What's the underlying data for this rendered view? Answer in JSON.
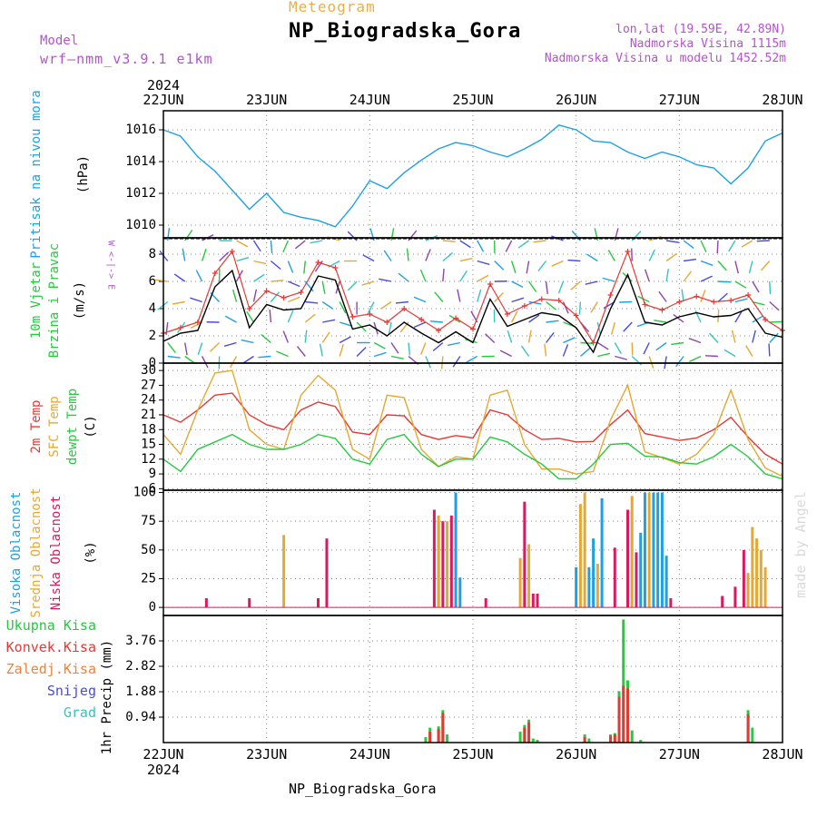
{
  "header": {
    "small_title": "Meteogram",
    "station": "NP_Biogradska_Gora",
    "model_label": "Model",
    "model_name": "wrf—nmm_v3.9.1  e1km",
    "lonlat": "lon,lat (19.59E, 42.89N)",
    "elevation": "Nadmorska Visina 1115m",
    "model_elevation": "Nadmorska Visina u modelu 1452.52m"
  },
  "footer": {
    "station": "NP_Biogradska_Gora",
    "watermark": "made by Angel"
  },
  "chart_data": {
    "type": "meteogram",
    "year": "2024",
    "x_ticks": [
      "22JUN",
      "23JUN",
      "24JUN",
      "25JUN",
      "26JUN",
      "27JUN",
      "28JUN"
    ],
    "x_range_hours": [
      0,
      144
    ],
    "panels": [
      {
        "id": "pressure",
        "type": "line",
        "ylabels": [
          "Pritisak na nivou mora",
          "(hPa)"
        ],
        "ylim": [
          1009.2,
          1017.2
        ],
        "yticks": [
          1010,
          1012,
          1014,
          1016
        ],
        "series": [
          {
            "color": "#1ea0e6",
            "x": [
              0,
              4,
              8,
              12,
              16,
              20,
              24,
              28,
              32,
              36,
              40,
              44,
              48,
              52,
              56,
              60,
              64,
              68,
              72,
              76,
              80,
              84,
              88,
              92,
              96,
              100,
              104,
              108,
              112,
              116,
              120,
              124,
              128,
              132,
              136,
              140,
              144
            ],
            "values": [
              1016,
              1015.6,
              1014.3,
              1013.4,
              1012.2,
              1011,
              1012,
              1010.8,
              1010.5,
              1010.3,
              1009.9,
              1011.2,
              1012.8,
              1012.3,
              1013.3,
              1014.1,
              1014.8,
              1015.2,
              1015,
              1014.6,
              1014.3,
              1014.8,
              1015.4,
              1016.3,
              1016,
              1015.3,
              1015.2,
              1014.6,
              1014.2,
              1014.6,
              1014.3,
              1013.8,
              1013.6,
              1012.6,
              1013.6,
              1015.3,
              1015.8
            ]
          }
        ]
      },
      {
        "id": "wind",
        "type": "line+arrows",
        "ylabels": [
          "10m Vjetar",
          "Brzina i Pravac",
          "(m/s)"
        ],
        "direction_legend": "W <-|-> E",
        "ylim": [
          0,
          9.2
        ],
        "yticks": [
          0,
          2,
          4,
          6,
          8
        ],
        "series": [
          {
            "name": "speed",
            "color": "#000000",
            "x": [
              0,
              4,
              8,
              12,
              16,
              20,
              24,
              28,
              32,
              36,
              40,
              44,
              48,
              52,
              56,
              60,
              64,
              68,
              72,
              76,
              80,
              84,
              88,
              92,
              96,
              100,
              104,
              108,
              112,
              116,
              120,
              124,
              128,
              132,
              136,
              140,
              144
            ],
            "values": [
              1.6,
              2.2,
              2.4,
              5.6,
              6.8,
              2.6,
              4.3,
              3.9,
              4,
              6.4,
              6.1,
              2.5,
              2.8,
              2,
              3,
              2.2,
              1.5,
              2.3,
              1.5,
              4.7,
              2.7,
              3.2,
              3.7,
              3.5,
              2.6,
              0.8,
              4,
              6.5,
              3,
              2.8,
              3.4,
              3.7,
              3.4,
              3.5,
              4,
              2.2,
              1.9
            ]
          },
          {
            "name": "gusts",
            "color": "#e53935",
            "x": [
              0,
              4,
              8,
              12,
              16,
              20,
              24,
              28,
              32,
              36,
              40,
              44,
              48,
              52,
              56,
              60,
              64,
              68,
              72,
              76,
              80,
              84,
              88,
              92,
              96,
              100,
              104,
              108,
              112,
              116,
              120,
              124,
              128,
              132,
              136,
              140,
              144
            ],
            "values": [
              2.2,
              2.6,
              3,
              6.6,
              8.2,
              4,
              5.3,
              4.8,
              5.2,
              7.4,
              7,
              3.4,
              3.6,
              3,
              4,
              3.2,
              2.4,
              3.3,
              2.5,
              5.8,
              3.6,
              4.2,
              4.7,
              4.6,
              3.5,
              1.5,
              5,
              8.2,
              4.3,
              3.9,
              4.5,
              4.9,
              4.5,
              4.6,
              5,
              3.2,
              2.4
            ]
          }
        ]
      },
      {
        "id": "temperature",
        "type": "line",
        "ylabels": [
          "2m Temp",
          "SFC Temp",
          "dewpt Temp",
          "(C)"
        ],
        "ylim": [
          5.7,
          31.5
        ],
        "yticks": [
          6,
          9,
          12,
          15,
          18,
          21,
          24,
          27,
          30
        ],
        "series": [
          {
            "name": "2m Temp",
            "color": "#e53935",
            "x": [
              0,
              4,
              8,
              12,
              16,
              20,
              24,
              28,
              32,
              36,
              40,
              44,
              48,
              52,
              56,
              60,
              64,
              68,
              72,
              76,
              80,
              84,
              88,
              92,
              96,
              100,
              104,
              108,
              112,
              116,
              120,
              124,
              128,
              132,
              136,
              140,
              144
            ],
            "values": [
              21,
              19.5,
              22,
              25,
              25.4,
              21,
              19,
              18,
              22,
              23.6,
              22.7,
              17.5,
              17,
              21,
              20.8,
              17,
              16,
              16.8,
              16.3,
              22,
              21,
              18,
              16,
              16.2,
              15.5,
              15.6,
              19,
              22,
              17.2,
              16.5,
              15.8,
              16.3,
              18,
              20.5,
              16.5,
              13,
              11
            ]
          },
          {
            "name": "SFC Temp",
            "color": "#e6a832",
            "x": [
              0,
              4,
              8,
              12,
              16,
              20,
              24,
              28,
              32,
              36,
              40,
              44,
              48,
              52,
              56,
              60,
              64,
              68,
              72,
              76,
              80,
              84,
              88,
              92,
              96,
              100,
              104,
              108,
              112,
              116,
              120,
              124,
              128,
              132,
              136,
              140,
              144
            ],
            "values": [
              17,
              13,
              22,
              29.5,
              30,
              18,
              15,
              14,
              25,
              29,
              26,
              14,
              12,
              25,
              24.5,
              14,
              10.5,
              12.5,
              12,
              25,
              26,
              15,
              10,
              10,
              9,
              9.5,
              20,
              27,
              13.5,
              12.3,
              11,
              13,
              17,
              26,
              16,
              10.2,
              8.5
            ]
          },
          {
            "name": "dewpt Temp",
            "color": "#27c93f",
            "x": [
              0,
              4,
              8,
              12,
              16,
              20,
              24,
              28,
              32,
              36,
              40,
              44,
              48,
              52,
              56,
              60,
              64,
              68,
              72,
              76,
              80,
              84,
              88,
              92,
              96,
              100,
              104,
              108,
              112,
              116,
              120,
              124,
              128,
              132,
              136,
              140,
              144
            ],
            "values": [
              12,
              9.5,
              14,
              15.5,
              17,
              15,
              14,
              14,
              15,
              17,
              16.2,
              12,
              11,
              16,
              17,
              13,
              10.5,
              12,
              12,
              16.5,
              15.5,
              13,
              11,
              8,
              8,
              11,
              15,
              15.2,
              12.6,
              12.4,
              11.3,
              11,
              12.5,
              15,
              12.5,
              9,
              8
            ]
          }
        ]
      },
      {
        "id": "clouds",
        "type": "bar",
        "ylabels": [
          "Visoka Oblacnost",
          "Srednja Oblacnost",
          "Niska Oblacnost",
          "(%)"
        ],
        "ylim": [
          -7,
          102
        ],
        "yticks": [
          0,
          25,
          50,
          75,
          100
        ],
        "series": [
          {
            "name": "Visoka Oblacnost",
            "color": "#1ea0e6",
            "x": [
              64,
              68,
              69,
              96,
              99,
              100,
              102,
              111,
              112,
              114,
              115,
              116,
              117
            ],
            "values": [
              75,
              100,
              26,
              35,
              35,
              60,
              95,
              65,
              100,
              100,
              100,
              100,
              45
            ]
          },
          {
            "name": "Srednja Oblacnost",
            "color": "#e6a832",
            "x": [
              28,
              64,
              66,
              83,
              85,
              97,
              98,
              101,
              109,
              113,
              136,
              137,
              138,
              139,
              140
            ],
            "values": [
              63,
              80,
              75,
              43,
              55,
              90,
              100,
              38,
              97,
              100,
              30,
              70,
              60,
              50,
              35
            ]
          },
          {
            "name": "Niska Oblacnost",
            "color": "#d81b60",
            "x": [
              10,
              20,
              36,
              38,
              63,
              65,
              67,
              75,
              84,
              86,
              87,
              105,
              108,
              110,
              118,
              130,
              133,
              135
            ],
            "values": [
              8,
              8,
              8,
              60,
              85,
              75,
              80,
              8,
              92,
              12,
              12,
              52,
              85,
              48,
              8,
              10,
              18,
              50
            ]
          }
        ]
      },
      {
        "id": "precip",
        "type": "bar",
        "ylabels": [
          "1hr Precip (mm)"
        ],
        "legend": [
          {
            "label": "Ukupna  Kisa",
            "color": "#27c93f"
          },
          {
            "label": "Konvek.Kisa",
            "color": "#e53935"
          },
          {
            "label": "Zaledj.Kisa",
            "color": "#f0823a"
          },
          {
            "label": "Snijeg",
            "color": "#4a4adb"
          },
          {
            "label": "Grad",
            "color": "#35c4c4"
          }
        ],
        "ylim": [
          0,
          4.7
        ],
        "yticks": [
          0.94,
          1.88,
          2.82,
          3.76
        ],
        "series": [
          {
            "name": "Ukupna Kisa",
            "color": "#27c93f",
            "x": [
              61,
              62,
              64,
              65,
              66,
              83,
              84,
              85,
              86,
              87,
              98,
              99,
              104,
              105,
              106,
              107,
              108,
              109,
              111,
              136,
              137
            ],
            "values": [
              0.2,
              0.55,
              0.6,
              1.2,
              0.3,
              0.4,
              0.65,
              0.85,
              0.15,
              0.1,
              0.3,
              0.15,
              0.3,
              0.35,
              1.9,
              4.55,
              2.3,
              0.45,
              0.1,
              1.2,
              0.55
            ]
          },
          {
            "name": "Konvek.Kisa",
            "color": "#e53935",
            "x": [
              62,
              64,
              65,
              84,
              85,
              98,
              104,
              105,
              106,
              107,
              108,
              136
            ],
            "values": [
              0.4,
              0.5,
              1.1,
              0.55,
              0.75,
              0.2,
              0.25,
              0.3,
              1.7,
              2.1,
              2,
              1.05
            ]
          }
        ]
      }
    ]
  }
}
